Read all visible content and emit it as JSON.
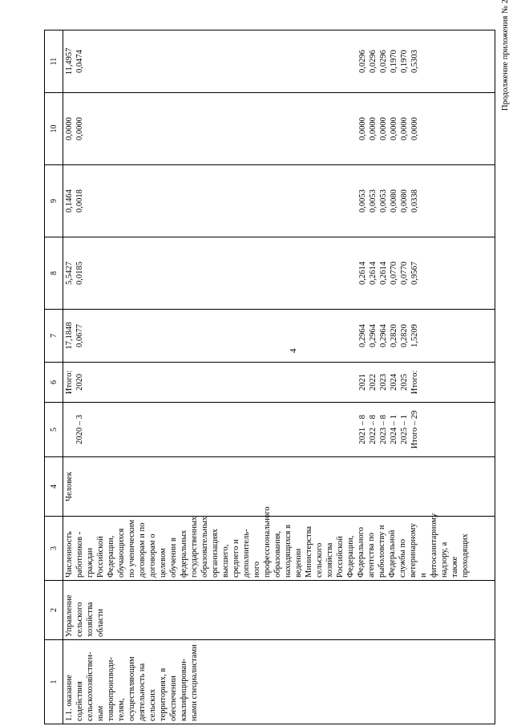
{
  "page": {
    "header_annotation": "Продолжение приложения № 2",
    "page_number": "4"
  },
  "table": {
    "column_numbers": [
      "1",
      "2",
      "3",
      "4",
      "5",
      "6",
      "7",
      "8",
      "9",
      "10",
      "11"
    ],
    "col1_text": "1.1. оказание содействия сельскохозяйствен-ным товаропроизводи-телям, осуществляющим деятельность на сельских территориях, в обеспечении квалифицирован-ными специалистами",
    "col2_text": "Управление сельского хозяйства области",
    "col3_text": "Численность работников - граждан Российской Федерации, обучающихся по ученическим договорам и по договорам о целевом обучении в федеральных государственных образовательных организациях высшего, среднего и дополнитель-ного профессионального образования, находящихся в ведении Министерства сельского хозяйства Российской Федерации, Федерального агентства по рыболовству и Федеральной службы по ветеринарному и фитосанитарному надзору, а также проходящих",
    "col4_text": "Человек",
    "col5": {
      "top": [
        "",
        "2020 – 3"
      ],
      "bottom": [
        "2021 – 8",
        "2022 – 8",
        "2023 – 8",
        "2024 – 1",
        "2025 – 1",
        "Итого – 29"
      ]
    },
    "col6": {
      "top": [
        "Итого:",
        "2020"
      ],
      "bottom": [
        "2021",
        "2022",
        "2023",
        "2024",
        "2025",
        "Итого:"
      ]
    },
    "col7": {
      "top": [
        "17,1848",
        "0,0677"
      ],
      "bottom": [
        "0,2964",
        "0,2964",
        "0,2964",
        "0,2820",
        "0,2820",
        "1,5209"
      ]
    },
    "col8": {
      "top": [
        "5,5427",
        "0,0185"
      ],
      "bottom": [
        "0,2614",
        "0,2614",
        "0,2614",
        "0,0770",
        "0,0770",
        "0,9567"
      ]
    },
    "col9": {
      "top": [
        "0,1464",
        "0,0018"
      ],
      "bottom": [
        "0,0053",
        "0,0053",
        "0,0053",
        "0,0080",
        "0,0080",
        "0,0338"
      ]
    },
    "col10": {
      "top": [
        "0,0000",
        "0,0000"
      ],
      "bottom": [
        "0,0000",
        "0,0000",
        "0,0000",
        "0,0000",
        "0,0000",
        "0,0000"
      ]
    },
    "col11": {
      "top": [
        "11,4957",
        "0,0474"
      ],
      "bottom": [
        "0,0296",
        "0,0296",
        "0,0296",
        "0,1970",
        "0,1970",
        "0,5303"
      ]
    }
  }
}
